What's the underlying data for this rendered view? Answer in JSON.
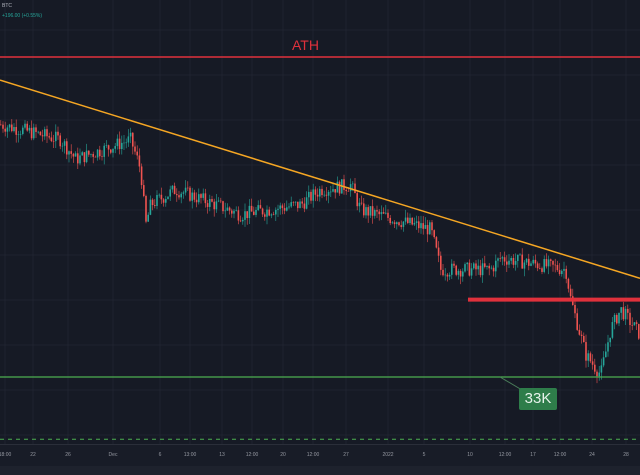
{
  "header": {
    "symbol": "BTC",
    "change": "+196.00 (+0.55%)"
  },
  "chart_data": {
    "type": "candlestick",
    "title": "",
    "x_ticks": [
      "18:00",
      "22",
      "26",
      "Dec",
      "6",
      "13:00",
      "13",
      "12:00",
      "20",
      "12:00",
      "27",
      "2022",
      "5",
      "10",
      "12:00",
      "17",
      "12:00",
      "24",
      "28"
    ],
    "price_path": [
      [
        0,
        61.4
      ],
      [
        60,
        59.7
      ],
      [
        75,
        57.5
      ],
      [
        130,
        59.7
      ],
      [
        140,
        56.3
      ],
      [
        145,
        50.1
      ],
      [
        150,
        52.4
      ],
      [
        175,
        54.1
      ],
      [
        240,
        51.3
      ],
      [
        300,
        52.4
      ],
      [
        320,
        54.1
      ],
      [
        350,
        54.6
      ],
      [
        360,
        51.8
      ],
      [
        430,
        49.6
      ],
      [
        440,
        45.1
      ],
      [
        490,
        45.1
      ],
      [
        500,
        46.4
      ],
      [
        565,
        45.1
      ],
      [
        570,
        41.7
      ],
      [
        585,
        35.5
      ],
      [
        600,
        33.3
      ],
      [
        610,
        38.4
      ],
      [
        620,
        40.6
      ],
      [
        639,
        37.8
      ]
    ],
    "y_range": [
      29,
      71
    ],
    "levels": [
      {
        "label": "ATH",
        "price": 69,
        "color": "#e0313c"
      },
      {
        "label": "",
        "price": 41.7,
        "color": "#e0313c",
        "from_index": 468
      },
      {
        "label": "33K",
        "price": 33,
        "color": "#4caf50"
      },
      {
        "label": "",
        "price": 26.0,
        "color": "#4caf50",
        "style": "dashed"
      }
    ],
    "trendline": {
      "color": "#f5a623",
      "start": [
        0,
        66.4
      ],
      "end": [
        640,
        44.1
      ]
    },
    "colors": {
      "up": "#26a69a",
      "down": "#ef5350",
      "background": "#161a25"
    },
    "grid": true
  }
}
